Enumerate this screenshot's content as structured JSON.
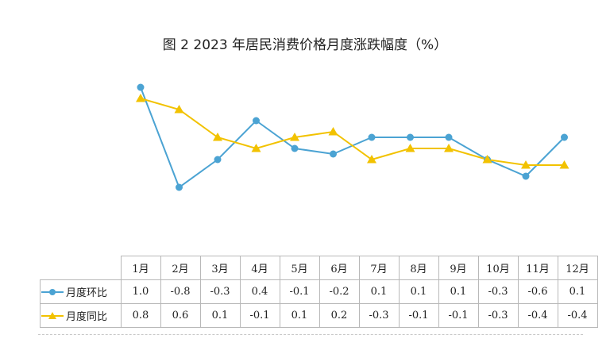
{
  "chart_data": {
    "type": "line",
    "title": "图 2  2023 年居民消费价格月度涨跌幅度（%）",
    "categories": [
      "1月",
      "2月",
      "3月",
      "4月",
      "5月",
      "6月",
      "7月",
      "8月",
      "9月",
      "10月",
      "11月",
      "12月"
    ],
    "series": [
      {
        "name": "月度环比",
        "values": [
          1.0,
          -0.8,
          -0.3,
          0.4,
          -0.1,
          -0.2,
          0.1,
          0.1,
          0.1,
          -0.3,
          -0.6,
          0.1
        ],
        "display": [
          "1.0",
          "-0.8",
          "-0.3",
          "0.4",
          "-0.1",
          "-0.2",
          "0.1",
          "0.1",
          "0.1",
          "-0.3",
          "-0.6",
          "0.1"
        ],
        "color": "#4ba3d3",
        "marker": "circle"
      },
      {
        "name": "月度同比",
        "values": [
          0.8,
          0.6,
          0.1,
          -0.1,
          0.1,
          0.2,
          -0.3,
          -0.1,
          -0.1,
          -0.3,
          -0.4,
          -0.4
        ],
        "display": [
          "0.8",
          "0.6",
          "0.1",
          "-0.1",
          "0.1",
          "0.2",
          "-0.3",
          "-0.1",
          "-0.1",
          "-0.3",
          "-0.4",
          "-0.4"
        ],
        "color": "#f2c200",
        "marker": "triangle"
      }
    ],
    "ylim": [
      -1.5,
      1.2
    ],
    "grid": false,
    "legend": "data-table"
  }
}
